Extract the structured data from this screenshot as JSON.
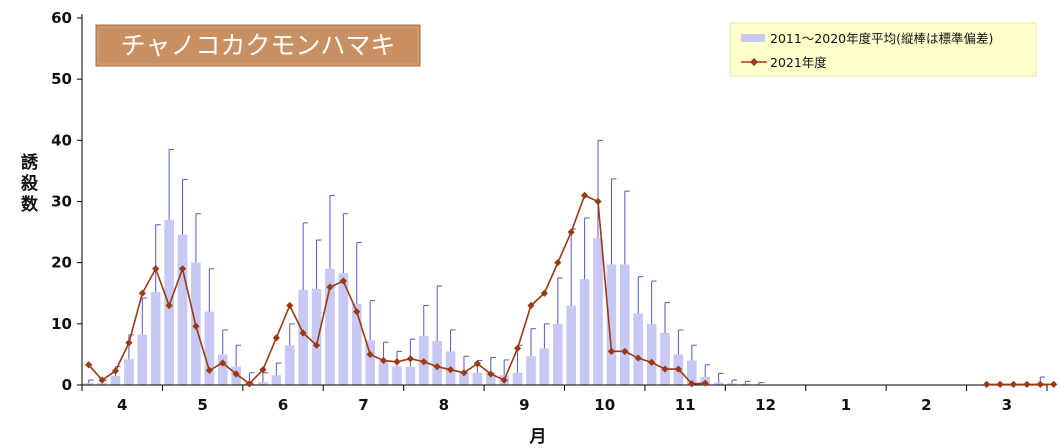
{
  "chart_data": {
    "type": "bar",
    "title": "チャノコカクモンハマキ",
    "xlabel": "月",
    "ylabel": "誘殺数",
    "ylim": [
      0,
      60
    ],
    "yticks": [
      0,
      10,
      20,
      30,
      40,
      50,
      60
    ],
    "x_month_labels": [
      "4",
      "5",
      "6",
      "7",
      "8",
      "9",
      "10",
      "11",
      "12",
      "1",
      "2",
      "3"
    ],
    "n_periods": 72,
    "legend_position": "top-right",
    "colors": {
      "bar": "#c8c8f5",
      "errorbar": "#5555cc",
      "line": "#9b3a12",
      "title_bg": "#c99064"
    },
    "series": [
      {
        "name": "2011～2020年度平均(縦棒は標準偏差)",
        "type": "bar",
        "values": [
          0.3,
          0.3,
          1.5,
          4.2,
          8.2,
          15.2,
          27,
          24.6,
          20,
          12,
          5,
          3,
          0.5,
          0.5,
          1.6,
          6.5,
          15.5,
          15.7,
          19,
          18.3,
          13.3,
          7.3,
          4,
          3,
          3,
          8,
          7.2,
          5.5,
          2.2,
          2,
          2,
          1.6,
          2,
          4.7,
          6,
          10,
          13,
          17.3,
          24,
          19.7,
          19.7,
          11.7,
          10,
          8.5,
          5,
          4,
          1.3,
          0.4,
          0.3,
          0.2,
          0.1,
          0,
          0,
          0,
          0,
          0,
          0,
          0,
          0,
          0,
          0,
          0,
          0,
          0,
          0,
          0,
          0,
          0,
          0,
          0,
          0,
          0.3
        ],
        "errors": [
          0.5,
          0.5,
          1.5,
          4,
          6,
          11,
          11.5,
          9,
          8,
          7,
          4,
          3.5,
          1.5,
          1.5,
          2,
          3.5,
          11,
          8,
          12,
          9.7,
          10,
          6.5,
          3,
          2.5,
          4.5,
          5,
          9,
          3.5,
          2.5,
          2,
          2.5,
          2.5,
          4.5,
          4.5,
          4,
          7.5,
          12.5,
          10,
          16,
          14,
          12,
          6,
          7,
          5,
          4,
          2.5,
          2,
          1.5,
          0.5,
          0.4,
          0.3,
          0,
          0,
          0,
          0,
          0,
          0,
          0,
          0,
          0,
          0,
          0,
          0,
          0,
          0,
          0,
          0,
          0,
          0,
          0,
          0,
          1
        ]
      },
      {
        "name": "2021年度",
        "type": "line",
        "values": [
          3.3,
          0.8,
          2.3,
          6.9,
          15,
          19,
          13,
          19,
          9.6,
          2.4,
          3.6,
          1.8,
          0.2,
          2.5,
          7.7,
          13,
          8.5,
          6.5,
          16,
          17,
          12,
          5,
          4,
          3.8,
          4.3,
          3.8,
          3,
          2.5,
          2,
          3.5,
          1.8,
          0.8,
          6,
          13,
          15,
          20,
          25,
          31,
          30,
          5.5,
          5.5,
          4.4,
          3.7,
          2.6,
          2.6,
          0.2,
          0.3,
          null,
          null,
          null,
          null,
          null,
          null,
          null,
          null,
          null,
          null,
          null,
          null,
          null,
          null,
          null,
          null,
          null,
          null,
          null,
          null,
          0.1,
          0.1,
          0.1,
          0.1,
          0.1,
          0.1
        ]
      }
    ]
  }
}
